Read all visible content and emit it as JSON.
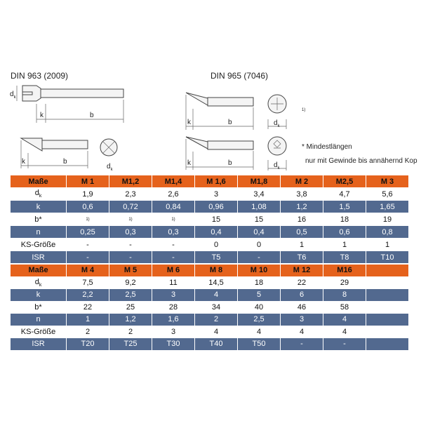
{
  "headings": [
    "DIN 963 (2009)",
    "DIN 965 (7046)"
  ],
  "drawing_labels": {
    "d": "d",
    "k": "k",
    "b": "b",
    "footnote": "1)"
  },
  "notes": [
    "* Mindestlängen",
    "nur mit Gewinde bis annähernd Kop"
  ],
  "tables": [
    {
      "header": [
        "Maße",
        "M 1",
        "M1,2",
        "M1,4",
        "M 1,6",
        "M1,8",
        "M 2",
        "M2,5",
        "M 3"
      ],
      "rows": [
        {
          "label": {
            "text": "d",
            "sub": "k"
          },
          "cells": [
            "1,9",
            "2,3",
            "2,6",
            "3",
            "3,4",
            "3,8",
            "4,7",
            "5,6"
          ]
        },
        {
          "label": {
            "text": "k"
          },
          "cells": [
            "0,6",
            "0,72",
            "0,84",
            "0,96",
            "1,08",
            "1,2",
            "1,5",
            "1,65"
          ]
        },
        {
          "label": {
            "text": "b*"
          },
          "cells": [
            "1)",
            "1)",
            "1)",
            "15",
            "15",
            "16",
            "18",
            "19"
          ]
        },
        {
          "label": {
            "text": "n"
          },
          "cells": [
            "0,25",
            "0,3",
            "0,3",
            "0,4",
            "0,4",
            "0,5",
            "0,6",
            "0,8"
          ]
        },
        {
          "label": {
            "text": "KS-Größe"
          },
          "cells": [
            "-",
            "-",
            "-",
            "0",
            "0",
            "1",
            "1",
            "1"
          ]
        },
        {
          "label": {
            "text": "ISR"
          },
          "cells": [
            "-",
            "-",
            "-",
            "T5",
            "-",
            "T6",
            "T8",
            "T10"
          ]
        }
      ]
    },
    {
      "header": [
        "Maße",
        "M 4",
        "M 5",
        "M 6",
        "M 8",
        "M 10",
        "M 12",
        "M16"
      ],
      "rows": [
        {
          "label": {
            "text": "d",
            "sub": "k"
          },
          "cells": [
            "7,5",
            "9,2",
            "11",
            "14,5",
            "18",
            "22",
            "29"
          ]
        },
        {
          "label": {
            "text": "k"
          },
          "cells": [
            "2,2",
            "2,5",
            "3",
            "4",
            "5",
            "6",
            "8"
          ]
        },
        {
          "label": {
            "text": "b*"
          },
          "cells": [
            "22",
            "25",
            "28",
            "34",
            "40",
            "46",
            "58"
          ]
        },
        {
          "label": {
            "text": "n"
          },
          "cells": [
            "1",
            "1,2",
            "1,6",
            "2",
            "2,5",
            "3",
            "4"
          ]
        },
        {
          "label": {
            "text": "KS-Größe"
          },
          "cells": [
            "2",
            "2",
            "3",
            "4",
            "4",
            "4",
            "4"
          ]
        },
        {
          "label": {
            "text": "ISR"
          },
          "cells": [
            "T20",
            "T25",
            "T30",
            "T40",
            "T50",
            "-",
            "-"
          ]
        }
      ]
    }
  ]
}
